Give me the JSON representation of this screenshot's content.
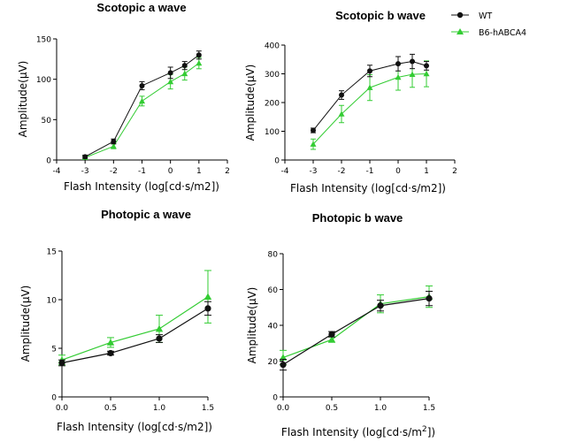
{
  "legend": [
    {
      "label": "WT",
      "color": "#111111",
      "marker": "circle"
    },
    {
      "label": "B6-hABCA4",
      "color": "#33cc33",
      "marker": "triangle"
    }
  ],
  "chart_data": [
    {
      "type": "line",
      "title": "Scotopic a wave",
      "xlabel": "Flash Intensity (log[cd·s/m2])",
      "ylabel": "Amplitude(μV)",
      "xlim": [
        -4,
        2
      ],
      "ylim": [
        0,
        150
      ],
      "xticks": [
        -4,
        -3,
        -2,
        -1,
        0,
        1,
        2
      ],
      "yticks": [
        0,
        50,
        100,
        150
      ],
      "x_ticklabels": [
        "-4",
        "-3",
        "-2",
        "-1",
        "0",
        "1",
        "2"
      ],
      "y_ticklabels": [
        "0",
        "50",
        "100",
        "150"
      ],
      "x": [
        -3,
        -2,
        -1,
        0,
        0.5,
        1
      ],
      "series": [
        {
          "name": "WT",
          "values": [
            4,
            23,
            92,
            108,
            117,
            130
          ],
          "errors": [
            2,
            3,
            5,
            7,
            5,
            5
          ]
        },
        {
          "name": "B6-hABCA4",
          "values": [
            3,
            17,
            73,
            97,
            107,
            120
          ],
          "errors": [
            2,
            3,
            6,
            9,
            8,
            7
          ]
        }
      ]
    },
    {
      "type": "line",
      "title": "Scotopic b wave",
      "xlabel": "Flash Intensity (log[cd·s/m2])",
      "ylabel": "Amplitude(μV)",
      "xlim": [
        -4,
        2
      ],
      "ylim": [
        0,
        400
      ],
      "xticks": [
        -4,
        -3,
        -2,
        -1,
        0,
        1,
        2
      ],
      "yticks": [
        0,
        100,
        200,
        300,
        400
      ],
      "x_ticklabels": [
        "-4",
        "-3",
        "-2",
        "-1",
        "0",
        "1",
        "2"
      ],
      "y_ticklabels": [
        "0",
        "100",
        "200",
        "300",
        "400"
      ],
      "x": [
        -3,
        -2,
        -1,
        0,
        0.5,
        1
      ],
      "series": [
        {
          "name": "WT",
          "values": [
            103,
            226,
            310,
            335,
            343,
            328
          ],
          "errors": [
            8,
            15,
            20,
            25,
            25,
            15
          ]
        },
        {
          "name": "B6-hABCA4",
          "values": [
            55,
            160,
            252,
            288,
            298,
            300
          ],
          "errors": [
            18,
            30,
            45,
            45,
            45,
            45
          ]
        }
      ]
    },
    {
      "type": "line",
      "title": "Photopic a wave",
      "xlabel": "Flash Intensity (log[cd·s/m2])",
      "ylabel": "Amplitude(μV)",
      "xlim": [
        0,
        1.5
      ],
      "ylim": [
        0,
        15
      ],
      "xticks": [
        0,
        0.5,
        1,
        1.5
      ],
      "yticks": [
        0,
        5,
        10,
        15
      ],
      "x_ticklabels": [
        "0.0",
        "0.5",
        "1.0",
        "1.5"
      ],
      "y_ticklabels": [
        "0",
        "5",
        "10",
        "15"
      ],
      "x": [
        0,
        0.5,
        1,
        1.5
      ],
      "series": [
        {
          "name": "WT",
          "values": [
            3.5,
            4.5,
            6.0,
            9.1
          ],
          "errors": [
            0.3,
            0.2,
            0.4,
            0.7
          ]
        },
        {
          "name": "B6-hABCA4",
          "values": [
            3.8,
            5.6,
            7.0,
            10.3
          ],
          "errors": [
            0.5,
            0.5,
            1.4,
            2.7
          ]
        }
      ]
    },
    {
      "type": "line",
      "title": "Photopic b wave",
      "xlabel": "Flash Intensity (log[cd·s/m",
      "xlabel_sup": "2",
      "xlabel_end": "])",
      "ylabel": "Amplitude(μV)",
      "xlim": [
        0,
        1.5
      ],
      "ylim": [
        0,
        80
      ],
      "xticks": [
        0,
        0.5,
        1,
        1.5
      ],
      "yticks": [
        0,
        20,
        40,
        60,
        80
      ],
      "x_ticklabels": [
        "0.0",
        "0.5",
        "1.0",
        "1.5"
      ],
      "y_ticklabels": [
        "0",
        "20",
        "40",
        "60",
        "80"
      ],
      "x": [
        0,
        0.5,
        1,
        1.5
      ],
      "series": [
        {
          "name": "WT",
          "values": [
            18,
            35,
            51,
            55
          ],
          "errors": [
            3,
            1.5,
            3,
            4
          ]
        },
        {
          "name": "B6-hABCA4",
          "values": [
            22,
            32,
            52,
            56
          ],
          "errors": [
            4,
            1.5,
            5,
            6
          ]
        }
      ]
    }
  ]
}
